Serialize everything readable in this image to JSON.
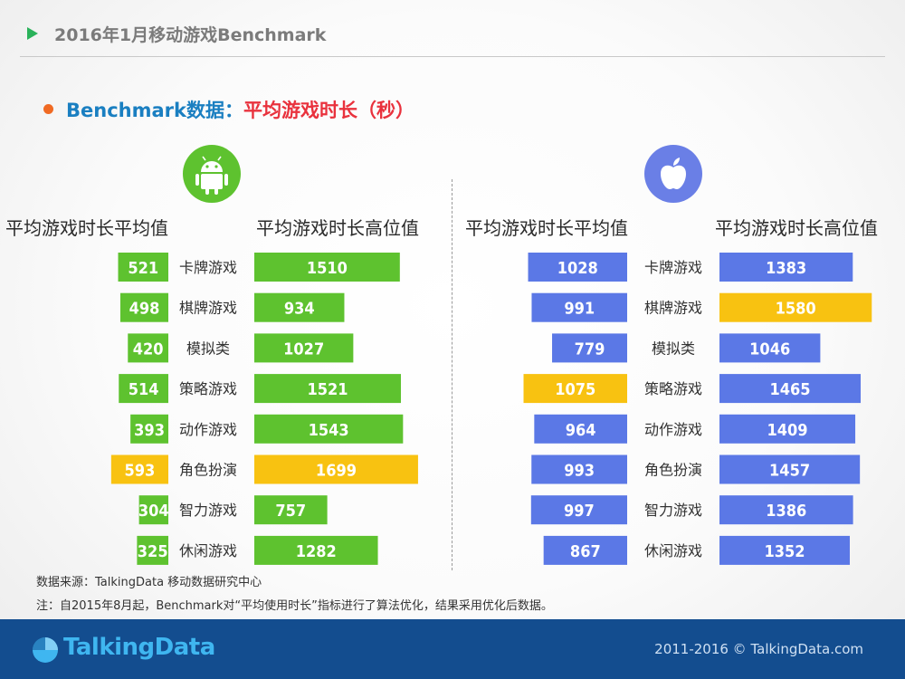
{
  "header": {
    "title": "2016年1月移动游戏Benchmark"
  },
  "subtitle": {
    "prefix": "Benchmark数据：",
    "highlight": "平均游戏时长（秒）"
  },
  "icons": {
    "android": "android-icon",
    "apple": "apple-icon",
    "logo": "talkingdata-logo-icon"
  },
  "colors": {
    "android_bar": "#5ec22f",
    "ios_bar": "#5b78e6",
    "highlight_bar": "#f8c211",
    "accent_dot": "#f06a23"
  },
  "chart_data": [
    {
      "type": "bar",
      "orientation": "horizontal",
      "platform": "Android",
      "categories": [
        "卡牌游戏",
        "棋牌游戏",
        "模拟类",
        "策略游戏",
        "动作游戏",
        "角色扮演",
        "智力游戏",
        "休闲游戏"
      ],
      "series": [
        {
          "name": "平均游戏时长平均值",
          "values": [
            521,
            498,
            420,
            514,
            393,
            593,
            304,
            325
          ],
          "highlight_index": 5
        },
        {
          "name": "平均游戏时长高位值",
          "values": [
            1510,
            934,
            1027,
            1521,
            1543,
            1699,
            757,
            1282
          ],
          "highlight_index": 5
        }
      ]
    },
    {
      "type": "bar",
      "orientation": "horizontal",
      "platform": "iOS",
      "categories": [
        "卡牌游戏",
        "棋牌游戏",
        "模拟类",
        "策略游戏",
        "动作游戏",
        "角色扮演",
        "智力游戏",
        "休闲游戏"
      ],
      "series": [
        {
          "name": "平均游戏时长平均值",
          "values": [
            1028,
            991,
            779,
            1075,
            964,
            993,
            997,
            867
          ],
          "highlight_index": 3
        },
        {
          "name": "平均游戏时长高位值",
          "values": [
            1383,
            1580,
            1046,
            1465,
            1409,
            1457,
            1386,
            1352
          ],
          "highlight_index": 1
        }
      ]
    }
  ],
  "footer": {
    "source": "数据来源：TalkingData 移动数据研究中心",
    "note": "注：自2015年8月起，Benchmark对“平均使用时长”指标进行了算法优化，结果采用优化后数据。",
    "logo_text": "TalkingData",
    "copyright": "2011-2016 © TalkingData.com"
  }
}
